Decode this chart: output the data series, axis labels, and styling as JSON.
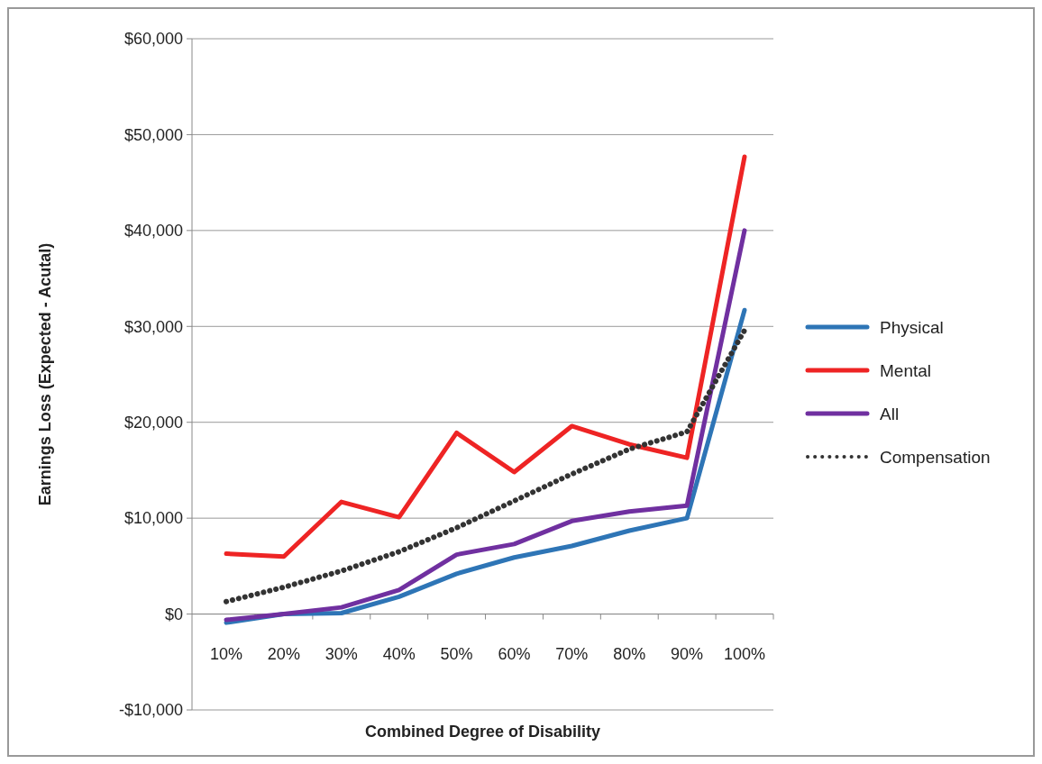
{
  "chart_data": {
    "type": "line",
    "xlabel": "Combined Degree of Disability",
    "ylabel": "Earnings Loss (Expected - Acutal)",
    "categories": [
      "10%",
      "20%",
      "30%",
      "40%",
      "50%",
      "60%",
      "70%",
      "80%",
      "90%",
      "100%"
    ],
    "series": [
      {
        "name": "Physical",
        "color": "#2e75b6",
        "values": [
          -900,
          0,
          100,
          1800,
          4200,
          5900,
          7100,
          8700,
          10000,
          31700
        ]
      },
      {
        "name": "Mental",
        "color": "#ee2424",
        "values": [
          6300,
          6000,
          11700,
          10100,
          18900,
          14800,
          19600,
          17700,
          16300,
          47700
        ]
      },
      {
        "name": "All",
        "color": "#7030a0",
        "values": [
          -600,
          0,
          700,
          2500,
          6200,
          7300,
          9700,
          10700,
          11300,
          40000
        ]
      },
      {
        "name": "Compensation",
        "color": "#333333",
        "line_style": "dotted",
        "values": [
          1300,
          2800,
          4500,
          6500,
          9000,
          11800,
          14600,
          17200,
          19000,
          29600
        ]
      }
    ],
    "ylim": [
      -10000,
      60000
    ],
    "yticks": [
      {
        "value": -10000,
        "label": "-$10,000"
      },
      {
        "value": 0,
        "label": "$0"
      },
      {
        "value": 10000,
        "label": "$10,000"
      },
      {
        "value": 20000,
        "label": "$20,000"
      },
      {
        "value": 30000,
        "label": "$30,000"
      },
      {
        "value": 40000,
        "label": "$40,000"
      },
      {
        "value": 50000,
        "label": "$50,000"
      },
      {
        "value": 60000,
        "label": "$60,000"
      }
    ],
    "grid": "y",
    "legend": "right"
  }
}
